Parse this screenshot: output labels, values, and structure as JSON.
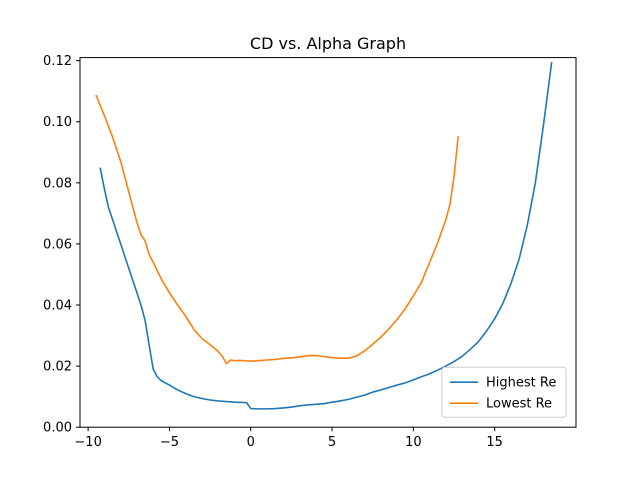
{
  "chart_data": {
    "type": "line",
    "title": "CD vs. Alpha Graph",
    "xlabel": "",
    "ylabel": "",
    "xlim": [
      -10.5,
      20.0
    ],
    "ylim": [
      0.0,
      0.121
    ],
    "xticks": [
      -10,
      -5,
      0,
      5,
      10,
      15
    ],
    "yticks": [
      0.0,
      0.02,
      0.04,
      0.06,
      0.08,
      0.1,
      0.12
    ],
    "ytick_format": 2,
    "legend_position": "lower-right",
    "grid": false,
    "series": [
      {
        "name": "Highest Re",
        "color": "#1f77b4",
        "x": [
          -9.25,
          -9.0,
          -8.75,
          -8.5,
          -8.0,
          -7.5,
          -7.0,
          -6.75,
          -6.5,
          -6.25,
          -6.0,
          -5.75,
          -5.5,
          -5.0,
          -4.5,
          -4.0,
          -3.5,
          -3.0,
          -2.5,
          -2.0,
          -1.5,
          -1.0,
          -0.5,
          -0.25,
          0.0,
          0.5,
          1.0,
          1.5,
          2.0,
          2.5,
          3.0,
          3.5,
          4.0,
          4.5,
          5.0,
          5.5,
          6.0,
          6.5,
          7.0,
          7.5,
          8.0,
          8.5,
          9.0,
          9.5,
          10.0,
          10.5,
          11.0,
          11.5,
          12.0,
          12.5,
          13.0,
          13.5,
          14.0,
          14.5,
          15.0,
          15.5,
          16.0,
          16.5,
          17.0,
          17.5,
          18.0,
          18.5
        ],
        "y": [
          0.0847,
          0.078,
          0.072,
          0.068,
          0.06,
          0.052,
          0.044,
          0.04,
          0.035,
          0.027,
          0.019,
          0.0165,
          0.0152,
          0.0138,
          0.0122,
          0.011,
          0.01,
          0.0094,
          0.0089,
          0.0086,
          0.0084,
          0.0082,
          0.0081,
          0.008,
          0.0061,
          0.006,
          0.006,
          0.0061,
          0.0063,
          0.0066,
          0.007,
          0.0073,
          0.0075,
          0.0077,
          0.0082,
          0.0086,
          0.0091,
          0.0098,
          0.0105,
          0.0115,
          0.0122,
          0.013,
          0.0138,
          0.0145,
          0.0155,
          0.0165,
          0.0175,
          0.0187,
          0.02,
          0.0215,
          0.0232,
          0.0255,
          0.028,
          0.0315,
          0.0355,
          0.0405,
          0.047,
          0.055,
          0.066,
          0.08,
          0.099,
          0.1193
        ]
      },
      {
        "name": "Lowest Re",
        "color": "#ff7f0e",
        "x": [
          -9.5,
          -9.0,
          -8.5,
          -8.0,
          -7.5,
          -7.0,
          -6.75,
          -6.5,
          -6.25,
          -6.0,
          -5.5,
          -5.0,
          -4.5,
          -4.0,
          -3.5,
          -3.0,
          -2.5,
          -2.0,
          -1.75,
          -1.5,
          -1.25,
          -1.0,
          -0.5,
          0.0,
          0.5,
          1.0,
          1.5,
          2.0,
          2.5,
          3.0,
          3.5,
          4.0,
          4.5,
          5.0,
          5.5,
          6.0,
          6.5,
          7.0,
          7.5,
          8.0,
          8.5,
          9.0,
          9.5,
          10.0,
          10.5,
          11.0,
          11.5,
          12.0,
          12.25,
          12.5,
          12.75
        ],
        "y": [
          0.1085,
          0.102,
          0.095,
          0.087,
          0.077,
          0.067,
          0.063,
          0.061,
          0.0565,
          0.054,
          0.0485,
          0.044,
          0.04,
          0.0363,
          0.032,
          0.029,
          0.027,
          0.0248,
          0.0232,
          0.0208,
          0.022,
          0.0218,
          0.0218,
          0.0216,
          0.0218,
          0.022,
          0.0222,
          0.0225,
          0.0227,
          0.023,
          0.0234,
          0.0235,
          0.0231,
          0.0228,
          0.0226,
          0.0226,
          0.0233,
          0.025,
          0.0272,
          0.0295,
          0.0322,
          0.0353,
          0.0388,
          0.043,
          0.0475,
          0.054,
          0.0605,
          0.068,
          0.073,
          0.082,
          0.095
        ]
      }
    ]
  }
}
